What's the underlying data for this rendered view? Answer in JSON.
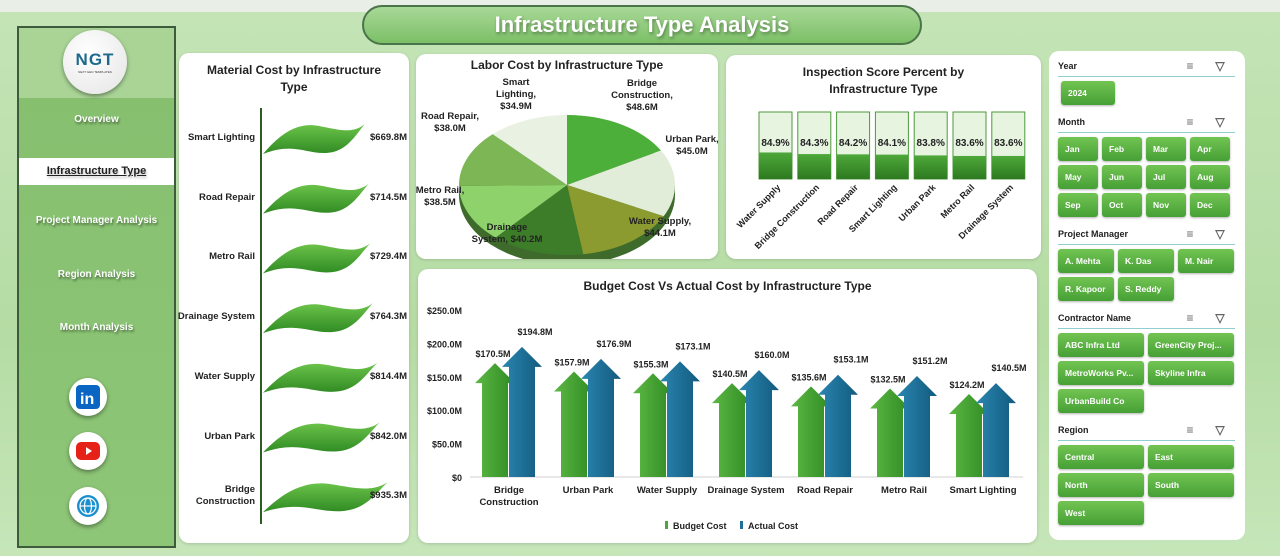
{
  "title": "Infrastructure Type Analysis",
  "logo": {
    "text": "NGT",
    "subtext": "NEXT GEN TEMPLATES"
  },
  "nav": [
    {
      "label": "Overview",
      "active": false
    },
    {
      "label": "Infrastructure Type",
      "active": true
    },
    {
      "label": "Project Manager Analysis",
      "active": false
    },
    {
      "label": "Region Analysis",
      "active": false
    },
    {
      "label": "Month Analysis",
      "active": false
    }
  ],
  "social": [
    "linkedin-icon",
    "youtube-icon",
    "globe-icon"
  ],
  "colors": {
    "budget": "#4aa83a",
    "actual": "#1f6f96",
    "accent": "#4caf3a"
  },
  "chart_data": [
    {
      "type": "bar",
      "orientation": "horizontal",
      "title": "Material Cost by Infrastructure Type",
      "categories": [
        "Smart Lighting",
        "Road Repair",
        "Metro Rail",
        "Drainage System",
        "Water Supply",
        "Urban Park",
        "Bridge Construction"
      ],
      "values": [
        669.8,
        714.5,
        729.4,
        764.3,
        814.4,
        842.0,
        935.3
      ],
      "data_labels": [
        "$669.8M",
        "$714.5M",
        "$729.4M",
        "$764.3M",
        "$814.4M",
        "$842.0M",
        "$935.3M"
      ],
      "unit": "$M"
    },
    {
      "type": "pie",
      "title": "Labor Cost by Infrastructure Type",
      "categories": [
        "Bridge Construction",
        "Urban Park",
        "Water Supply",
        "Drainage System",
        "Metro Rail",
        "Road Repair",
        "Smart Lighting"
      ],
      "values": [
        48.6,
        45.0,
        44.1,
        40.2,
        38.5,
        38.0,
        34.9
      ],
      "data_labels": [
        "Bridge Construction, $48.6M",
        "Urban Park, $45.0M",
        "Water Supply, $44.1M",
        "Drainage System, $40.2M",
        "Metro Rail, $38.5M",
        "Road Repair, $38.0M",
        "Smart Lighting, $34.9M"
      ],
      "colors": [
        "#4caf3a",
        "#e1ecd9",
        "#8c9b2f",
        "#3d7d2a",
        "#8ed26c",
        "#7db654",
        "#e9f1e2"
      ]
    },
    {
      "type": "bar",
      "title": "Inspection Score Percent by Infrastructure Type",
      "categories": [
        "Water Supply",
        "Bridge Construction",
        "Road Repair",
        "Smart Lighting",
        "Urban Park",
        "Metro Rail",
        "Drainage System"
      ],
      "values": [
        84.9,
        84.3,
        84.2,
        84.1,
        83.8,
        83.6,
        83.6
      ],
      "data_labels": [
        "84.9%",
        "84.3%",
        "84.2%",
        "84.1%",
        "83.8%",
        "83.6%",
        "83.6%"
      ],
      "unit": "%"
    },
    {
      "type": "bar",
      "title": "Budget Cost Vs Actual Cost by Infrastructure Type",
      "categories": [
        "Bridge Construction",
        "Urban Park",
        "Water Supply",
        "Drainage System",
        "Road Repair",
        "Metro Rail",
        "Smart Lighting"
      ],
      "series": [
        {
          "name": "Budget Cost",
          "values": [
            170.5,
            157.9,
            155.3,
            140.5,
            135.6,
            132.5,
            124.2
          ],
          "data_labels": [
            "$170.5M",
            "$157.9M",
            "$155.3M",
            "$140.5M",
            "$135.6M",
            "$132.5M",
            "$124.2M"
          ]
        },
        {
          "name": "Actual Cost",
          "values": [
            194.8,
            176.9,
            173.1,
            160.0,
            153.1,
            151.2,
            140.5
          ],
          "data_labels": [
            "$194.8M",
            "$176.9M",
            "$173.1M",
            "$160.0M",
            "$153.1M",
            "$151.2M",
            "$140.5M"
          ]
        }
      ],
      "ylim": [
        0,
        250
      ],
      "yticks": [
        "$0",
        "$50.0M",
        "$100.0M",
        "$150.0M",
        "$200.0M",
        "$250.0M"
      ],
      "legend": "bottom",
      "grid": false
    }
  ],
  "slicers": [
    {
      "title": "Year",
      "columns": 1,
      "items": [
        "2024"
      ]
    },
    {
      "title": "Month",
      "columns": 4,
      "items": [
        "Jan",
        "Feb",
        "Mar",
        "Apr",
        "May",
        "Jun",
        "Jul",
        "Aug",
        "Sep",
        "Oct",
        "Nov",
        "Dec"
      ]
    },
    {
      "title": "Project Manager",
      "columns": 3,
      "items": [
        "A. Mehta",
        "K. Das",
        "M. Nair",
        "R. Kapoor",
        "S. Reddy"
      ]
    },
    {
      "title": "Contractor Name",
      "columns": 2,
      "items": [
        "ABC Infra Ltd",
        "GreenCity Proj...",
        "MetroWorks Pv...",
        "Skyline Infra",
        "UrbanBuild Co"
      ]
    },
    {
      "title": "Region",
      "columns": 2,
      "items": [
        "Central",
        "East",
        "North",
        "South",
        "West"
      ]
    }
  ]
}
